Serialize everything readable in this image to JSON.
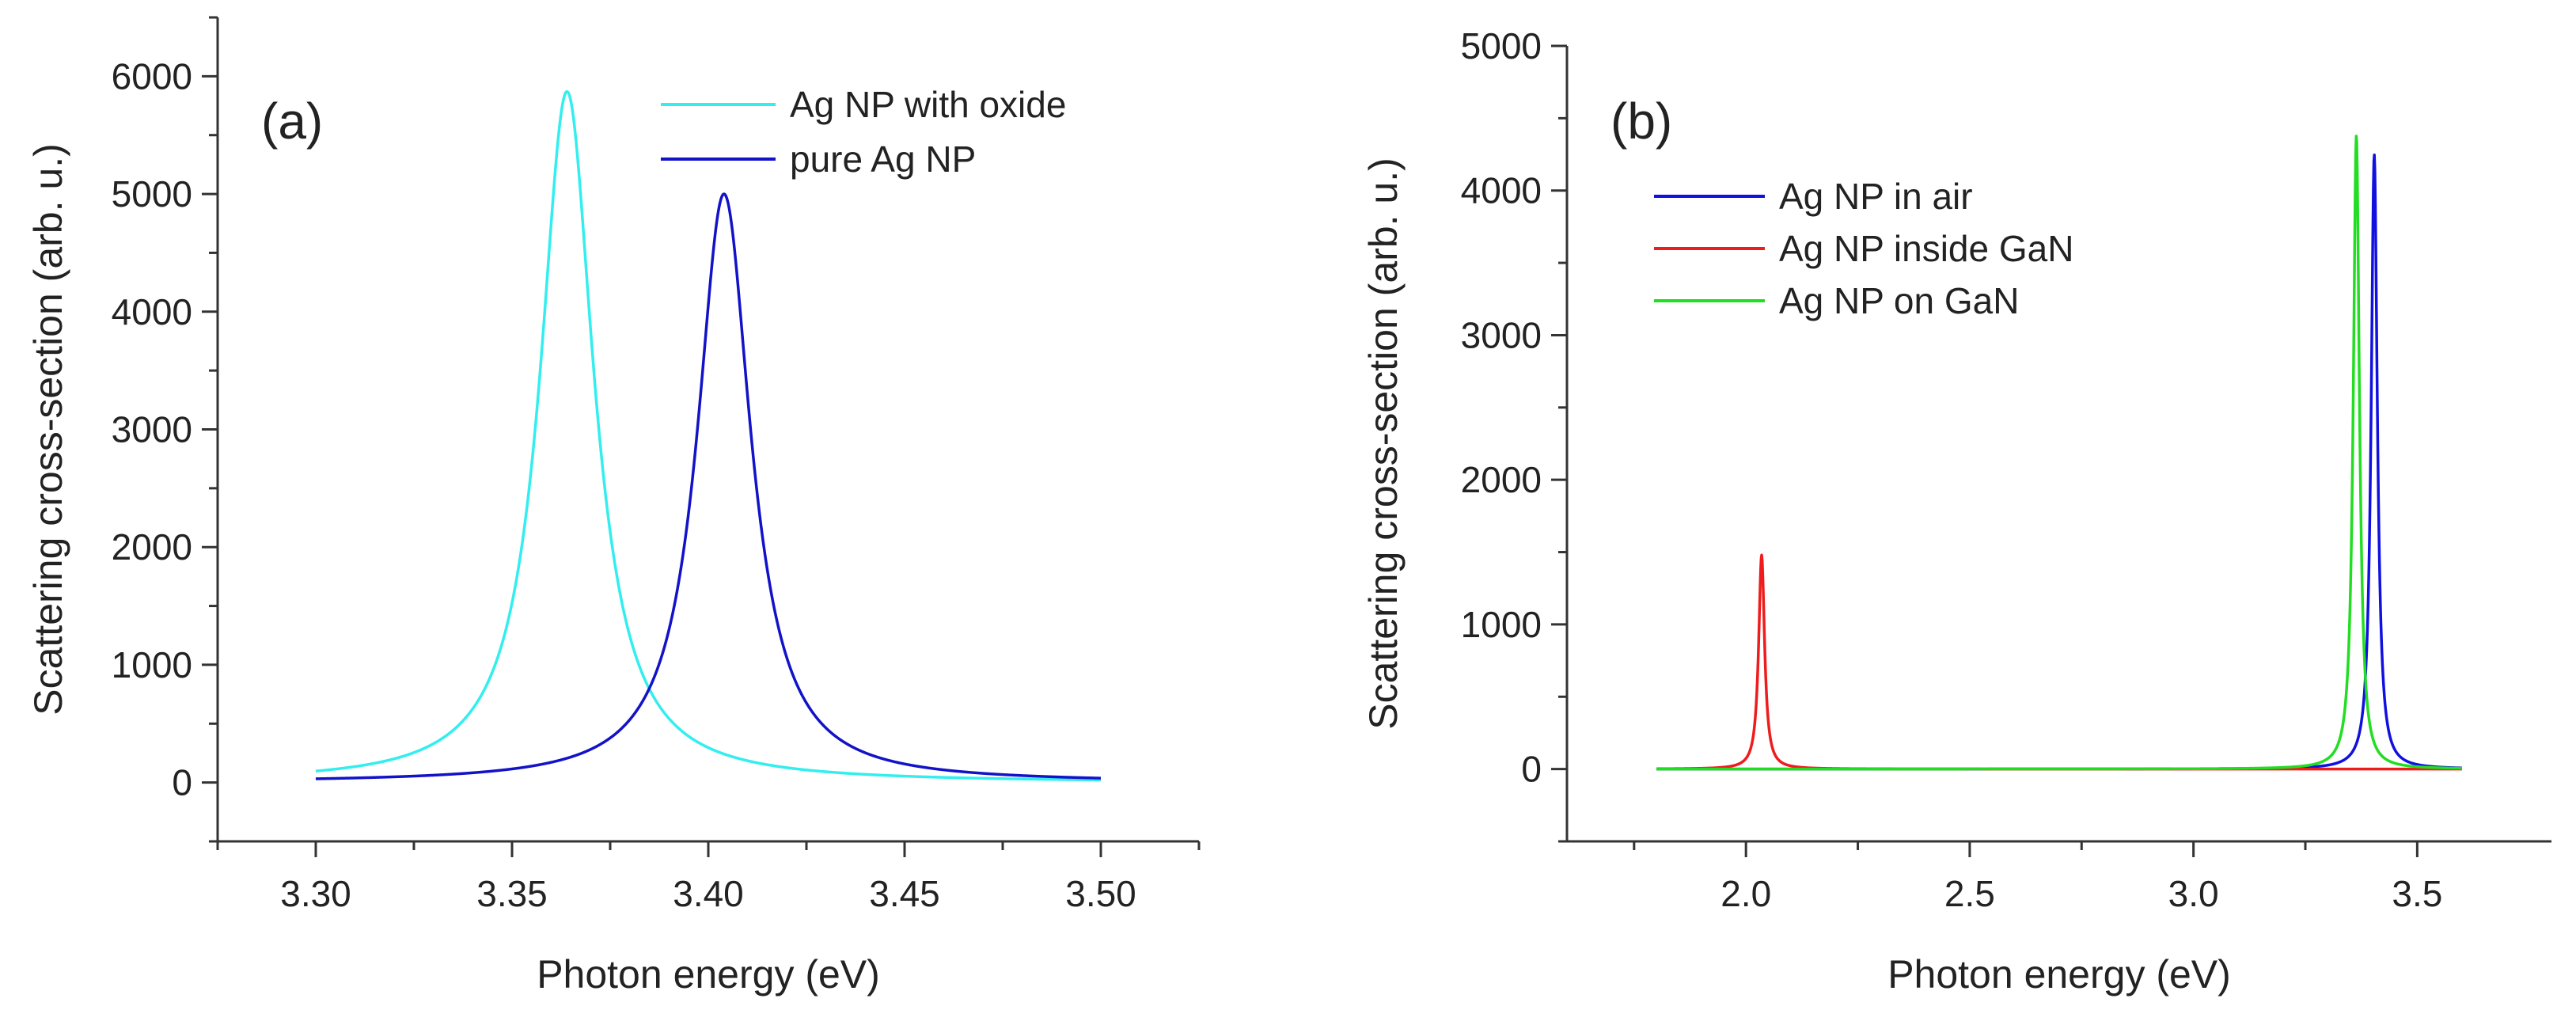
{
  "figure_title": "",
  "colors": {
    "ag_np_with_oxide": "#33EEEE",
    "pure_ag_np": "#1212C8",
    "ag_np_in_air": "#1010E0",
    "ag_np_inside_gan": "#EE1C1C",
    "ag_np_on_gan": "#22DD22"
  },
  "chart_data": [
    {
      "id": "a",
      "type": "line",
      "panel_label": "(a)",
      "title": "",
      "xlabel": "Photon energy (eV)",
      "ylabel": "Scattering cross-section (arb. u.)",
      "xlim": [
        3.275,
        3.525
      ],
      "ylim": [
        -500,
        6500
      ],
      "x_ticks": [
        3.3,
        3.35,
        3.4,
        3.45,
        3.5
      ],
      "x_tick_labels": [
        "3.30",
        "3.35",
        "3.40",
        "3.45",
        "3.50"
      ],
      "x_minor_step": 0.025,
      "y_ticks": [
        0,
        1000,
        2000,
        3000,
        4000,
        5000,
        6000
      ],
      "y_tick_labels": [
        "0",
        "1000",
        "2000",
        "3000",
        "4000",
        "5000",
        "6000"
      ],
      "y_minor_step": 500,
      "legend_position": "top-right",
      "series": [
        {
          "name": "Ag NP with oxide",
          "color_key": "ag_np_with_oxide",
          "shape": "lorentzian",
          "center": 3.364,
          "half_width": 0.0083,
          "peak": 5870,
          "baseline": 0,
          "x_start": 3.3,
          "x_end": 3.5
        },
        {
          "name": "pure Ag NP",
          "color_key": "pure_ag_np",
          "shape": "lorentzian",
          "center": 3.404,
          "half_width": 0.0083,
          "peak": 5000,
          "baseline": 0,
          "x_start": 3.3,
          "x_end": 3.5
        }
      ]
    },
    {
      "id": "b",
      "type": "line",
      "panel_label": "(b)",
      "title": "",
      "xlabel": "Photon energy (eV)",
      "ylabel": "Scattering cross-section (arb. u.)",
      "xlim": [
        1.6,
        3.8
      ],
      "ylim": [
        -500,
        5000
      ],
      "x_ticks": [
        2.0,
        2.5,
        3.0,
        3.5
      ],
      "x_tick_labels": [
        "2.0",
        "2.5",
        "3.0",
        "3.5"
      ],
      "x_minor_step": 0.25,
      "y_ticks": [
        0,
        1000,
        2000,
        3000,
        4000,
        5000
      ],
      "y_tick_labels": [
        "0",
        "1000",
        "2000",
        "3000",
        "4000",
        "5000"
      ],
      "y_minor_step": 500,
      "legend_position": "top-left",
      "series": [
        {
          "name": "Ag NP in air",
          "color_key": "ag_np_in_air",
          "shape": "lorentzian",
          "center": 3.404,
          "half_width": 0.0083,
          "peak": 4250,
          "baseline": 0,
          "x_start": 1.8,
          "x_end": 3.6
        },
        {
          "name": "Ag NP inside GaN",
          "color_key": "ag_np_inside_gan",
          "shape": "lorentzian",
          "center": 2.035,
          "half_width": 0.008,
          "peak": 1480,
          "baseline": 0,
          "x_start": 1.8,
          "x_end": 3.6
        },
        {
          "name": "Ag NP on GaN",
          "color_key": "ag_np_on_gan",
          "shape": "lorentzian",
          "center": 3.364,
          "half_width": 0.0083,
          "peak": 4380,
          "baseline": 0,
          "x_start": 1.8,
          "x_end": 3.6
        }
      ]
    }
  ]
}
